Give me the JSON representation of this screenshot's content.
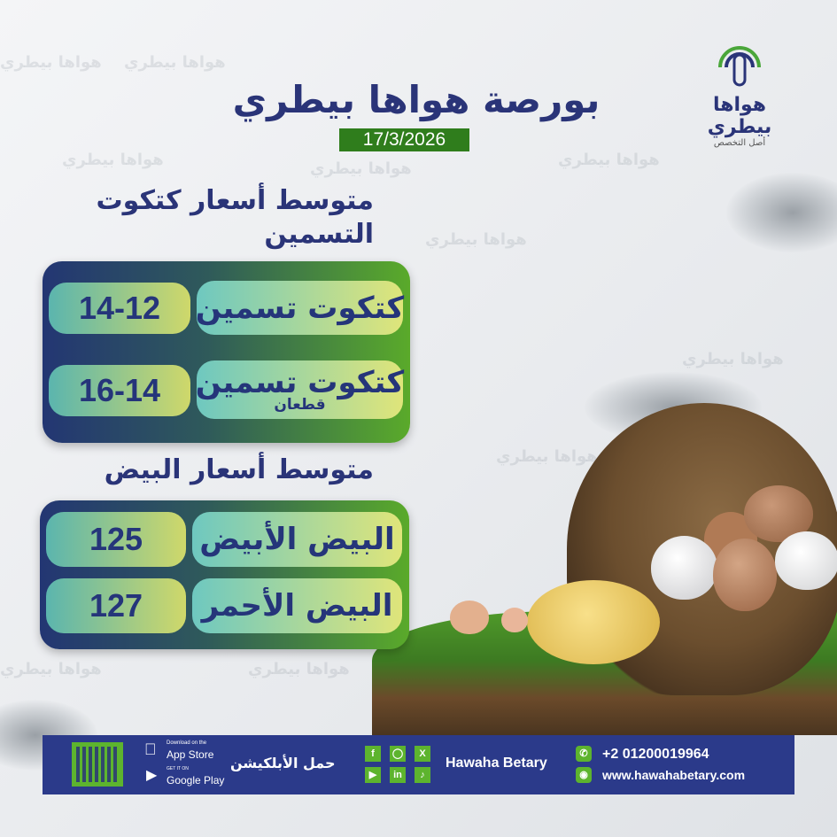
{
  "watermark": "هواها بيطري",
  "logo": {
    "name": "هواها بيطري",
    "tagline": "أصل التخصص"
  },
  "title": "بورصة هواها بيطري",
  "date": "17/3/2026",
  "chicks": {
    "heading": "متوسط أسعار كتكوت التسمين",
    "rows": [
      {
        "label": "كتكوت تسمين",
        "sub": "",
        "value": "14-12"
      },
      {
        "label": "كتكوت تسمين",
        "sub": "قطعان",
        "value": "16-14"
      }
    ]
  },
  "eggs": {
    "heading": "متوسط أسعار البيض",
    "rows": [
      {
        "label": "البيض الأبيض",
        "value": "125"
      },
      {
        "label": "البيض الأحمر",
        "value": "127"
      }
    ]
  },
  "footer": {
    "app_store_small": "Download on the",
    "app_store": "App Store",
    "google_small": "GET IT ON",
    "google": "Google Play",
    "download_app": "حمل الأبلكيشن",
    "brand": "Hawaha Betary",
    "phone": "+2 01200019964",
    "website": "www.hawahabetary.com",
    "social": [
      "facebook",
      "instagram",
      "x",
      "youtube",
      "linkedin",
      "tiktok"
    ]
  },
  "colors": {
    "navy": "#2a3478",
    "green": "#2f7d1c",
    "footer": "#2b3a8a",
    "accent": "#5db42e"
  }
}
